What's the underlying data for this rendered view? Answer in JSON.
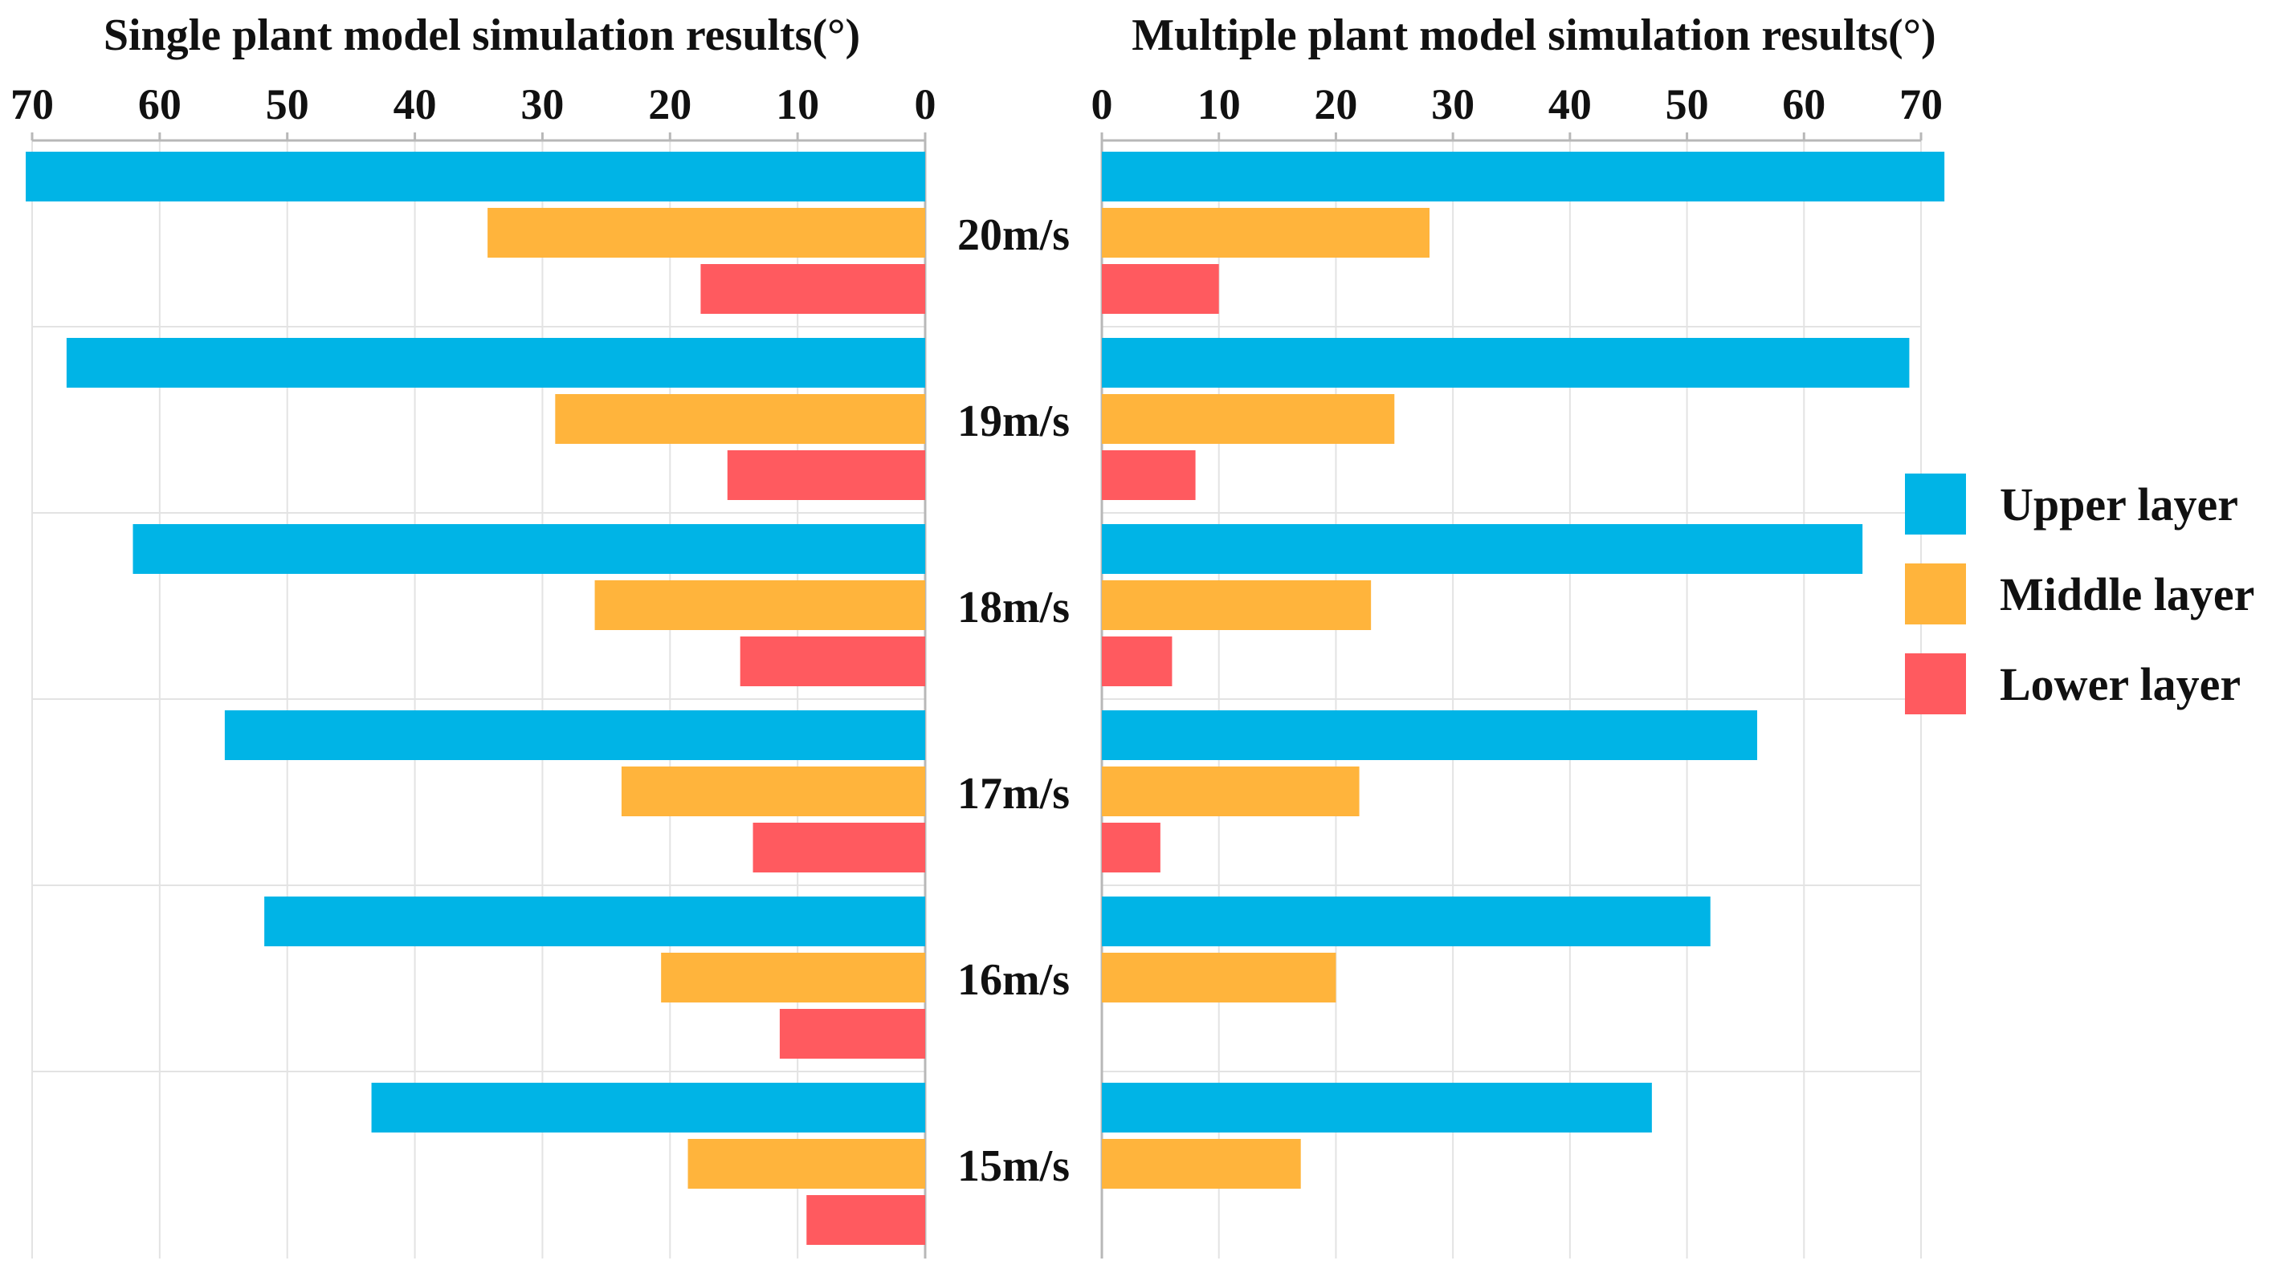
{
  "chart_data": [
    {
      "type": "bar",
      "orientation": "horizontal",
      "direction": "right-to-left",
      "title": "Single plant model simulation results(°)",
      "categories": [
        "20m/s",
        "19m/s",
        "18m/s",
        "17m/s",
        "16m/s",
        "15m/s"
      ],
      "xlim": [
        0,
        70
      ],
      "xticks": [
        "70",
        "60",
        "50",
        "40",
        "30",
        "20",
        "10",
        "0"
      ],
      "series": [
        {
          "name": "Upper layer",
          "color": "#00b4e6",
          "values": [
            70.5,
            67.3,
            62.1,
            54.9,
            51.8,
            43.4
          ]
        },
        {
          "name": "Middle layer",
          "color": "#ffb43c",
          "values": [
            34.3,
            29.0,
            25.9,
            23.8,
            20.7,
            18.6
          ]
        },
        {
          "name": "Lower layer",
          "color": "#ff5a5f",
          "values": [
            17.6,
            15.5,
            14.5,
            13.5,
            11.4,
            9.3
          ]
        }
      ]
    },
    {
      "type": "bar",
      "orientation": "horizontal",
      "direction": "left-to-right",
      "title": "Multiple plant model simulation results(°)",
      "categories": [
        "20m/s",
        "19m/s",
        "18m/s",
        "17m/s",
        "16m/s",
        "15m/s"
      ],
      "xlim": [
        0,
        70
      ],
      "xticks": [
        "0",
        "10",
        "20",
        "30",
        "40",
        "50",
        "60",
        "70"
      ],
      "series": [
        {
          "name": "Upper layer",
          "color": "#00b4e6",
          "values": [
            72.0,
            69.0,
            65.0,
            56.0,
            52.0,
            47.0
          ]
        },
        {
          "name": "Middle layer",
          "color": "#ffb43c",
          "values": [
            28.0,
            25.0,
            23.0,
            22.0,
            20.0,
            17.0
          ]
        },
        {
          "name": "Lower layer",
          "color": "#ff5a5f",
          "values": [
            10.0,
            8.0,
            6.0,
            5.0,
            0,
            0
          ]
        }
      ]
    }
  ],
  "legend": {
    "position": "right",
    "items": [
      {
        "label": "Upper layer",
        "color": "#00b4e6"
      },
      {
        "label": "Middle layer",
        "color": "#ffb43c"
      },
      {
        "label": "Lower layer",
        "color": "#ff5a5f"
      }
    ]
  }
}
